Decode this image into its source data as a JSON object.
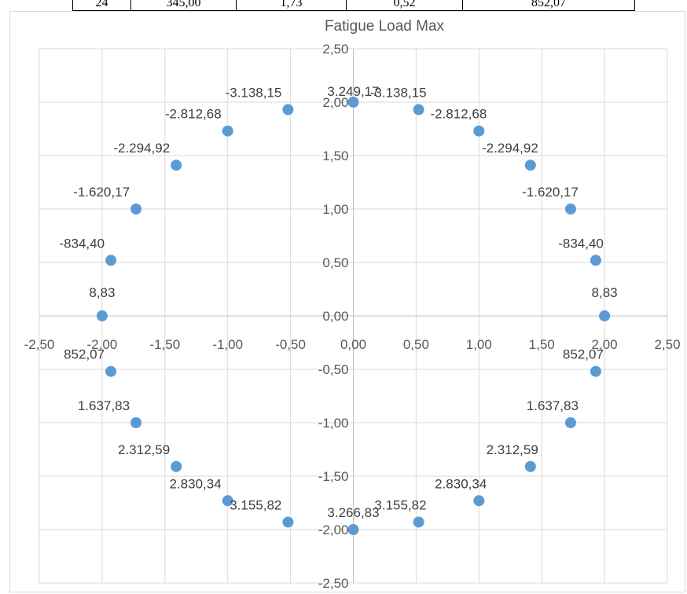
{
  "table_fragment": {
    "cells": [
      "24",
      "345,00",
      "1,73",
      "0,52",
      "852,07"
    ]
  },
  "chart_data": {
    "type": "scatter",
    "title": "Fatigue Load Max",
    "xlabel": "",
    "ylabel": "",
    "xlim": [
      -2.5,
      2.5
    ],
    "ylim": [
      -2.5,
      2.5
    ],
    "x_ticks": [
      "-2,50",
      "-2,00",
      "-1,50",
      "-1,00",
      "-0,50",
      "0,00",
      "0,50",
      "1,00",
      "1,50",
      "2,00",
      "2,50"
    ],
    "y_ticks": [
      "-2,50",
      "-2,00",
      "-1,50",
      "-1,00",
      "-0,50",
      "0,00",
      "0,50",
      "1,00",
      "1,50",
      "2,00",
      "2,50"
    ],
    "grid": true,
    "legend": "none",
    "marker_color": "#5b9bd5",
    "series": [
      {
        "points": [
          {
            "x": 0.0,
            "y": 2.0,
            "label": "3.249,17"
          },
          {
            "x": 0.52,
            "y": 1.93,
            "label": "-3.138,15"
          },
          {
            "x": 1.0,
            "y": 1.73,
            "label": "-2.812,68"
          },
          {
            "x": 1.41,
            "y": 1.41,
            "label": "-2.294,92"
          },
          {
            "x": 1.73,
            "y": 1.0,
            "label": "-1.620,17"
          },
          {
            "x": 1.93,
            "y": 0.52,
            "label": "-834,40"
          },
          {
            "x": 2.0,
            "y": 0.0,
            "label": "8,83"
          },
          {
            "x": 1.93,
            "y": -0.52,
            "label": "852,07"
          },
          {
            "x": 1.73,
            "y": -1.0,
            "label": "1.637,83"
          },
          {
            "x": 1.41,
            "y": -1.41,
            "label": "2.312,59"
          },
          {
            "x": 1.0,
            "y": -1.73,
            "label": "2.830,34"
          },
          {
            "x": 0.52,
            "y": -1.93,
            "label": "3.155,82"
          },
          {
            "x": 0.0,
            "y": -2.0,
            "label": "3.266,83"
          },
          {
            "x": -0.52,
            "y": -1.93,
            "label": "3.155,82"
          },
          {
            "x": -1.0,
            "y": -1.73,
            "label": "2.830,34"
          },
          {
            "x": -1.41,
            "y": -1.41,
            "label": "2.312,59"
          },
          {
            "x": -1.73,
            "y": -1.0,
            "label": "1.637,83"
          },
          {
            "x": -1.93,
            "y": -0.52,
            "label": "852,07"
          },
          {
            "x": -2.0,
            "y": 0.0,
            "label": "8,83"
          },
          {
            "x": -1.93,
            "y": 0.52,
            "label": "-834,40"
          },
          {
            "x": -1.73,
            "y": 1.0,
            "label": "-1.620,17"
          },
          {
            "x": -1.41,
            "y": 1.41,
            "label": "-2.294,92"
          },
          {
            "x": -1.0,
            "y": 1.73,
            "label": "-2.812,68"
          },
          {
            "x": -0.52,
            "y": 1.93,
            "label": "-3.138,15"
          }
        ]
      }
    ]
  }
}
